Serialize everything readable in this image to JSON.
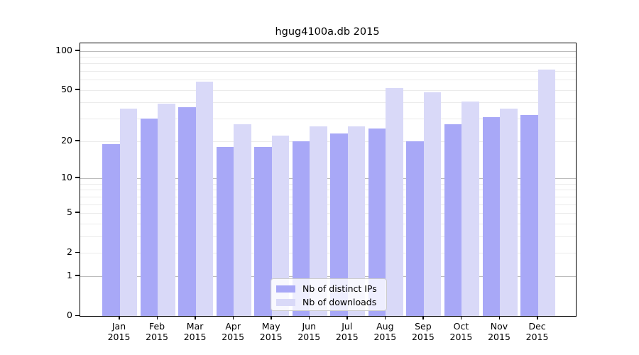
{
  "chart_data": {
    "type": "bar",
    "title": "hgug4100a.db 2015",
    "categories": [
      "Jan",
      "Feb",
      "Mar",
      "Apr",
      "May",
      "Jun",
      "Jul",
      "Aug",
      "Sep",
      "Oct",
      "Nov",
      "Dec"
    ],
    "year": "2015",
    "series": [
      {
        "name": "Nb of distinct IPs",
        "color": "#a8a8f7",
        "values": [
          19,
          30,
          37,
          18,
          18,
          20,
          23,
          25,
          20,
          27,
          31,
          32
        ]
      },
      {
        "name": "Nb of downloads",
        "color": "#d9d9f8",
        "values": [
          36,
          39,
          58,
          27,
          22,
          26,
          26,
          52,
          48,
          41,
          36,
          72
        ]
      }
    ],
    "yscale": "log1p",
    "ylim": [
      0,
      114
    ],
    "y_ticks": [
      0,
      1,
      2,
      5,
      10,
      20,
      50,
      100
    ],
    "grid": {
      "major": [
        1,
        10,
        100
      ],
      "minor": [
        2,
        3,
        4,
        5,
        6,
        7,
        8,
        9,
        20,
        30,
        40,
        50,
        60,
        70,
        80,
        90
      ]
    },
    "legend_position": "bottom-center",
    "colors": {
      "spine": "#000000",
      "grid_major": "#bcbcbc",
      "grid_minor": "#ebebeb",
      "legend_border": "#cccccc"
    }
  }
}
